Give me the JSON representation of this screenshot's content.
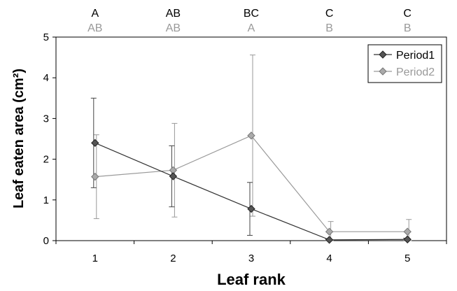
{
  "chart_data": {
    "type": "line",
    "xlabel": "Leaf rank",
    "ylabel": "Leaf eaten area (cm²)",
    "categories": [
      "1",
      "2",
      "3",
      "4",
      "5"
    ],
    "ylim": [
      0,
      5
    ],
    "yticks": [
      "0",
      "1",
      "2",
      "3",
      "4",
      "5"
    ],
    "grid": false,
    "legend_position": "top-right",
    "series": [
      {
        "name": "Period1",
        "color": "#555555",
        "values": [
          2.4,
          1.58,
          0.78,
          0.02,
          0.03
        ],
        "error": [
          1.1,
          0.75,
          0.65,
          0.02,
          0.03
        ]
      },
      {
        "name": "Period2",
        "color": "#aaaaaa",
        "values": [
          1.57,
          1.73,
          2.58,
          0.22,
          0.22
        ],
        "error": [
          1.03,
          1.15,
          1.98,
          0.25,
          0.3
        ]
      }
    ],
    "letters_period1": [
      "A",
      "AB",
      "BC",
      "C",
      "C"
    ],
    "letters_period2": [
      "AB",
      "AB",
      "A",
      "B",
      "B"
    ]
  }
}
